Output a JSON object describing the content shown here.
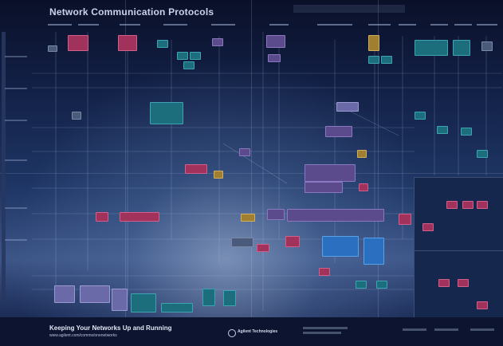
{
  "poster": {
    "title": "Network Communication Protocols",
    "footer": {
      "tagline": "Keeping Your Networks Up and Running",
      "url": "www.agilent.com/comms/onenetworks",
      "brand": "Agilent Technologies"
    }
  },
  "colors": {
    "background_top": "#0a1028",
    "background_mid": "#1f3766",
    "purple": "#5b4a8c",
    "pink": "#a0325c",
    "teal": "#1d6e7c",
    "blue": "#2a6fc0"
  },
  "icons": [
    "agilent-logo-icon"
  ]
}
